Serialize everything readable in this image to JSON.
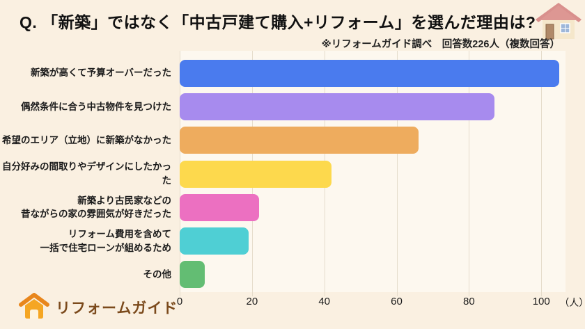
{
  "header": {
    "title": "Q. 「新築」ではなく「中古戸建て購入+リフォーム」を選んだ理由は?",
    "subtitle": "※リフォームガイド調べ　回答数226人（複数回答）"
  },
  "chart_data": {
    "type": "bar",
    "orientation": "horizontal",
    "title": "Q. 「新築」ではなく「中古戸建て購入+リフォーム」を選んだ理由は?",
    "source_note": "※リフォームガイド調べ　回答数226人（複数回答）",
    "categories": [
      "新築が高くて予算オーバーだった",
      "偶然条件に合う中古物件を見つけた",
      "希望のエリア（立地）に新築がなかった",
      "自分好みの間取りやデザインにしたかった",
      "新築より古民家などの\n昔ながらの家の雰囲気が好きだった",
      "リフォーム費用を含めて\n一括で住宅ローンが組めるため",
      "その他"
    ],
    "values": [
      105,
      87,
      66,
      42,
      22,
      19,
      7
    ],
    "bar_colors": [
      "#4a7bee",
      "#a78bee",
      "#eeac5e",
      "#fdd94d",
      "#ec70c1",
      "#4fcfd4",
      "#63bd73"
    ],
    "x_ticks": [
      0,
      20,
      40,
      60,
      80,
      100
    ],
    "x_unit": "（人）",
    "xlim": [
      0,
      106.7
    ],
    "grid": true,
    "legend": "none"
  },
  "footer": {
    "logo_text": "リフォームガイド"
  },
  "colors": {
    "page_background": "#faf0e1",
    "plot_background": "#fdf8ef",
    "gridline": "#e5dccb",
    "title_text": "#111111",
    "logo_orange": "#e8861c",
    "logo_body_orange": "#f5a623",
    "logo_text_brown": "#7b4a1c",
    "house_roof": "#d9908d",
    "house_wall": "#f5e7cb",
    "house_door": "#b08968",
    "house_window": "#9db6d9"
  }
}
